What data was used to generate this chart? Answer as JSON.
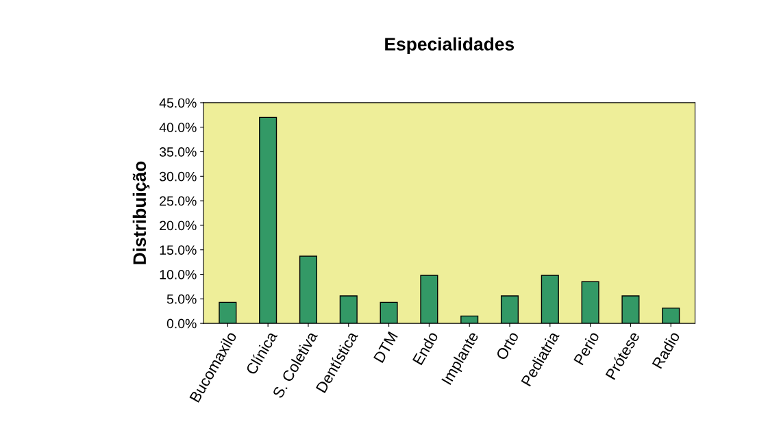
{
  "chart_data": {
    "type": "bar",
    "title": "Especialidades",
    "ylabel": "Distribuição",
    "categories": [
      "Bucomaxilo",
      "Clínica",
      "S. Coletiva",
      "Dentística",
      "DTM",
      "Endo",
      "Implante",
      "Orto",
      "Pediatria",
      "Perio",
      "Prótese",
      "Radio"
    ],
    "values": [
      4.3,
      42.0,
      13.7,
      5.6,
      4.3,
      9.8,
      1.5,
      5.6,
      9.8,
      8.5,
      5.6,
      3.1
    ],
    "color": "#339966",
    "ylim": [
      0,
      45
    ],
    "yticks": [
      {
        "value": 0,
        "label": "0.0%"
      },
      {
        "value": 5,
        "label": "5.0%"
      },
      {
        "value": 10,
        "label": "10.0%"
      },
      {
        "value": 15,
        "label": "15.0%"
      },
      {
        "value": 20,
        "label": "20.0%"
      },
      {
        "value": 25,
        "label": "25.0%"
      },
      {
        "value": 30,
        "label": "30.0%"
      },
      {
        "value": 35,
        "label": "35.0%"
      },
      {
        "value": 40,
        "label": "40.0%"
      },
      {
        "value": 45,
        "label": "45.0%"
      }
    ],
    "grid": false,
    "legend": false
  }
}
